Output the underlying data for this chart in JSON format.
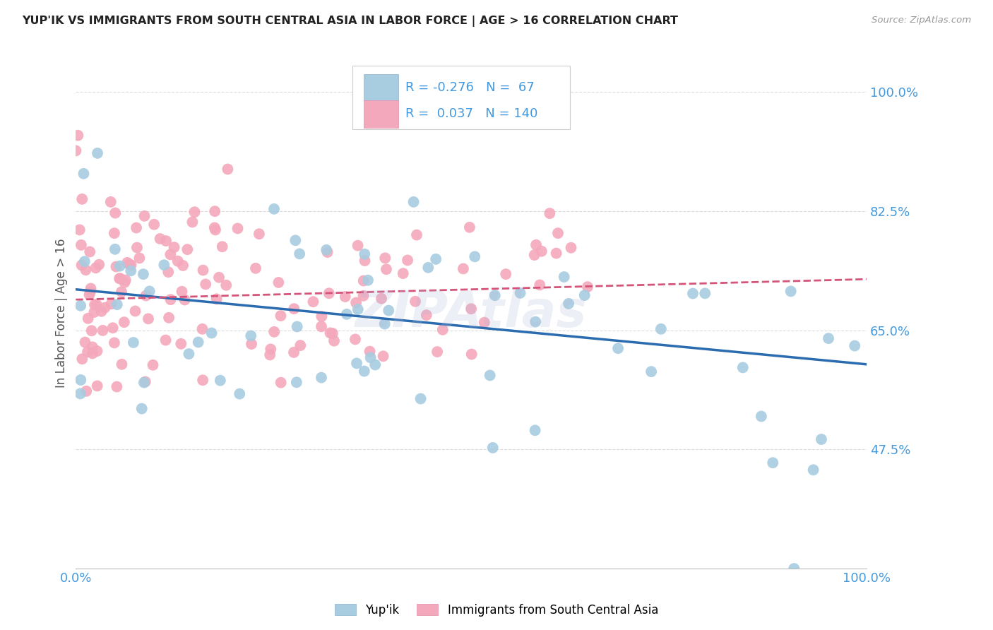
{
  "title": "YUP'IK VS IMMIGRANTS FROM SOUTH CENTRAL ASIA IN LABOR FORCE | AGE > 16 CORRELATION CHART",
  "source": "Source: ZipAtlas.com",
  "ylabel": "In Labor Force | Age > 16",
  "y_tick_positions": [
    1.0,
    0.825,
    0.65,
    0.475
  ],
  "xlim": [
    0.0,
    1.0
  ],
  "ylim": [
    0.3,
    1.05
  ],
  "watermark": "ZIPAtlas",
  "legend_R_blue": "R = -0.276",
  "legend_N_blue": "N =  67",
  "legend_R_pink": "R =  0.037",
  "legend_N_pink": "N = 140",
  "blue_color": "#a8cce0",
  "pink_color": "#f4a8bb",
  "blue_line_color": "#2b6cb0",
  "pink_line_color": "#d4547a",
  "background_color": "#ffffff",
  "grid_color": "#cccccc",
  "title_color": "#222222",
  "axis_label_color": "#4499dd",
  "blue_trend_x": [
    0.0,
    1.0
  ],
  "blue_trend_y": [
    0.71,
    0.6
  ],
  "pink_trend_x": [
    0.0,
    1.0
  ],
  "pink_trend_y": [
    0.695,
    0.725
  ],
  "blue_legend_label": "Yup'ik",
  "pink_legend_label": "Immigrants from South Central Asia"
}
